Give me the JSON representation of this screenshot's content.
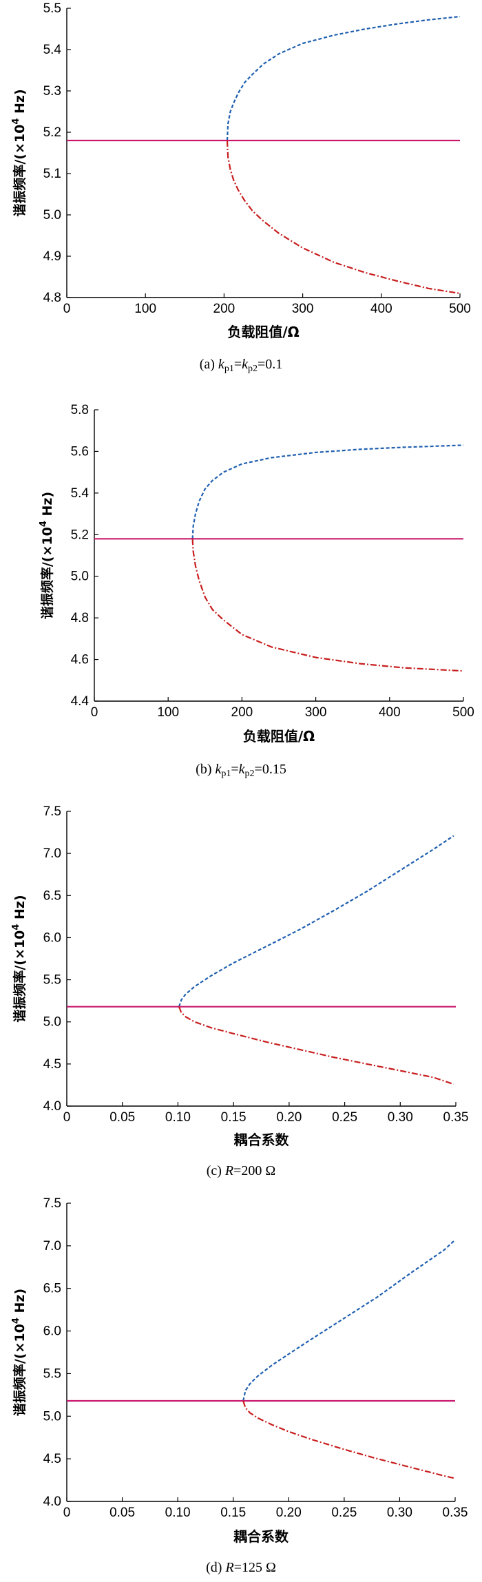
{
  "chart_data": [
    {
      "type": "line",
      "ylabel_main": "谐振频率/(×10",
      "ylabel_exp": "4",
      "ylabel_unit": " Hz)",
      "xlabel": "负载阻值/Ω",
      "caption": {
        "prefix": "(a) ",
        "v1": "k",
        "s1": "p1",
        "eq1": "=",
        "v2": "k",
        "s2": "p2",
        "tail": "=0.1"
      },
      "xlim": [
        0,
        500
      ],
      "ylim": [
        4.8,
        5.5
      ],
      "xticks": [
        0,
        100,
        200,
        300,
        400,
        500
      ],
      "xtick_labels": [
        "0",
        "100",
        "200",
        "300",
        "400",
        "500"
      ],
      "yticks": [
        4.8,
        4.9,
        5.0,
        5.1,
        5.2,
        5.3,
        5.4,
        5.5
      ],
      "ytick_labels": [
        "4.8",
        "4.9",
        "5.0",
        "5.1",
        "5.2",
        "5.3",
        "5.4",
        "5.5"
      ],
      "series": [
        {
          "style": "dashed",
          "color": "#1f5fb0",
          "x": [
            204,
            205,
            208,
            212,
            218,
            226,
            236,
            250,
            270,
            300,
            340,
            380,
            420,
            460,
            500
          ],
          "y": [
            5.18,
            5.22,
            5.25,
            5.27,
            5.295,
            5.32,
            5.34,
            5.365,
            5.39,
            5.415,
            5.435,
            5.45,
            5.462,
            5.472,
            5.48
          ]
        },
        {
          "style": "solid",
          "color": "#c8186e",
          "x": [
            0,
            500
          ],
          "y": [
            5.18,
            5.18
          ]
        },
        {
          "style": "dashdot",
          "color": "#c81e1e",
          "x": [
            204,
            205,
            208,
            212,
            218,
            226,
            236,
            250,
            270,
            300,
            340,
            380,
            420,
            460,
            500
          ],
          "y": [
            5.18,
            5.14,
            5.11,
            5.085,
            5.06,
            5.035,
            5.01,
            4.985,
            4.955,
            4.92,
            4.885,
            4.86,
            4.84,
            4.822,
            4.81
          ]
        }
      ]
    },
    {
      "type": "line",
      "ylabel_main": "谐振频率/(×10",
      "ylabel_exp": "4",
      "ylabel_unit": " Hz)",
      "xlabel": "负载阻值/Ω",
      "caption": {
        "prefix": "(b) ",
        "v1": "k",
        "s1": "p1",
        "eq1": "=",
        "v2": "k",
        "s2": "p2",
        "tail": "=0.15"
      },
      "xlim": [
        0,
        500
      ],
      "ylim": [
        4.4,
        5.8
      ],
      "xticks": [
        0,
        100,
        200,
        300,
        400,
        500
      ],
      "xtick_labels": [
        "0",
        "100",
        "200",
        "300",
        "400",
        "500"
      ],
      "yticks": [
        4.4,
        4.6,
        4.8,
        5.0,
        5.2,
        5.4,
        5.6,
        5.8
      ],
      "ytick_labels": [
        "4.4",
        "4.6",
        "4.8",
        "5.0",
        "5.2",
        "5.4",
        "5.6",
        "5.8"
      ],
      "series": [
        {
          "style": "dashed",
          "color": "#1f5fb0",
          "x": [
            133,
            134,
            137,
            142,
            150,
            160,
            175,
            200,
            240,
            300,
            360,
            420,
            500
          ],
          "y": [
            5.18,
            5.24,
            5.3,
            5.36,
            5.42,
            5.46,
            5.5,
            5.54,
            5.57,
            5.595,
            5.61,
            5.62,
            5.63
          ]
        },
        {
          "style": "solid",
          "color": "#c8186e",
          "x": [
            0,
            500
          ],
          "y": [
            5.18,
            5.18
          ]
        },
        {
          "style": "dashdot",
          "color": "#c81e1e",
          "x": [
            133,
            134,
            137,
            142,
            150,
            160,
            175,
            200,
            240,
            300,
            360,
            420,
            500
          ],
          "y": [
            5.18,
            5.12,
            5.05,
            4.98,
            4.9,
            4.84,
            4.79,
            4.72,
            4.66,
            4.61,
            4.58,
            4.56,
            4.545
          ]
        }
      ]
    },
    {
      "type": "line",
      "ylabel_main": "谐振频率/(×10",
      "ylabel_exp": "4",
      "ylabel_unit": " Hz)",
      "xlabel": "耦合系数",
      "caption": {
        "prefix": "(c) ",
        "v1": "R",
        "s1": "",
        "eq1": "",
        "v2": "",
        "s2": "",
        "tail": "=200 Ω"
      },
      "xlim": [
        0,
        0.35
      ],
      "ylim": [
        4.0,
        7.5
      ],
      "xticks": [
        0,
        0.05,
        0.1,
        0.15,
        0.2,
        0.25,
        0.3,
        0.35
      ],
      "xtick_labels": [
        "0",
        "0.05",
        "0.10",
        "0.15",
        "0.20",
        "0.25",
        "0.30",
        "0.35"
      ],
      "yticks": [
        4.0,
        4.5,
        5.0,
        5.5,
        6.0,
        6.5,
        7.0,
        7.5
      ],
      "ytick_labels": [
        "4.0",
        "4.5",
        "5.0",
        "5.5",
        "6.0",
        "6.5",
        "7.0",
        "7.5"
      ],
      "series": [
        {
          "style": "dashed",
          "color": "#1f5fb0",
          "x": [
            0.101,
            0.103,
            0.107,
            0.115,
            0.13,
            0.15,
            0.18,
            0.21,
            0.24,
            0.27,
            0.3,
            0.33,
            0.348
          ],
          "y": [
            5.18,
            5.26,
            5.33,
            5.42,
            5.55,
            5.7,
            5.9,
            6.1,
            6.32,
            6.55,
            6.8,
            7.05,
            7.21
          ]
        },
        {
          "style": "solid",
          "color": "#c8186e",
          "x": [
            0,
            0.35
          ],
          "y": [
            5.18,
            5.18
          ]
        },
        {
          "style": "dashdot",
          "color": "#c81e1e",
          "x": [
            0.101,
            0.103,
            0.107,
            0.115,
            0.13,
            0.15,
            0.18,
            0.21,
            0.24,
            0.27,
            0.3,
            0.33,
            0.348
          ],
          "y": [
            5.18,
            5.11,
            5.06,
            5.0,
            4.93,
            4.86,
            4.76,
            4.67,
            4.58,
            4.5,
            4.42,
            4.34,
            4.26
          ]
        }
      ]
    },
    {
      "type": "line",
      "ylabel_main": "谐振频率/(×10",
      "ylabel_exp": "4",
      "ylabel_unit": " Hz)",
      "xlabel": "耦合系数",
      "caption": {
        "prefix": "(d) ",
        "v1": "R",
        "s1": "",
        "eq1": "",
        "v2": "",
        "s2": "",
        "tail": "=125 Ω"
      },
      "xlim": [
        0,
        0.35
      ],
      "ylim": [
        4.0,
        7.5
      ],
      "xticks": [
        0,
        0.05,
        0.1,
        0.15,
        0.2,
        0.25,
        0.3,
        0.35
      ],
      "xtick_labels": [
        "0",
        "0.05",
        "0.10",
        "0.15",
        "0.20",
        "0.25",
        "0.30",
        "0.35"
      ],
      "yticks": [
        4.0,
        4.5,
        5.0,
        5.5,
        6.0,
        6.5,
        7.0,
        7.5
      ],
      "ytick_labels": [
        "4.0",
        "4.5",
        "5.0",
        "5.5",
        "6.0",
        "6.5",
        "7.0",
        "7.5"
      ],
      "series": [
        {
          "style": "dashed",
          "color": "#1f5fb0",
          "x": [
            0.159,
            0.161,
            0.165,
            0.172,
            0.185,
            0.2,
            0.22,
            0.25,
            0.28,
            0.31,
            0.34,
            0.35
          ],
          "y": [
            5.18,
            5.3,
            5.38,
            5.47,
            5.6,
            5.73,
            5.9,
            6.15,
            6.4,
            6.68,
            6.95,
            7.07
          ]
        },
        {
          "style": "solid",
          "color": "#c8186e",
          "x": [
            0,
            0.35
          ],
          "y": [
            5.18,
            5.18
          ]
        },
        {
          "style": "dashdot",
          "color": "#c81e1e",
          "x": [
            0.159,
            0.161,
            0.165,
            0.172,
            0.185,
            0.2,
            0.22,
            0.25,
            0.28,
            0.31,
            0.34,
            0.35
          ],
          "y": [
            5.18,
            5.1,
            5.04,
            4.98,
            4.9,
            4.82,
            4.73,
            4.61,
            4.5,
            4.4,
            4.3,
            4.27
          ]
        }
      ]
    }
  ]
}
